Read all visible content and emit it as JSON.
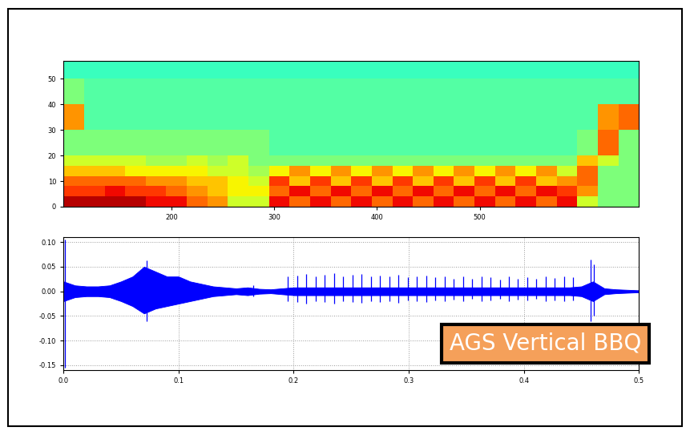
{
  "chart_data": [
    {
      "type": "heatmap",
      "x_edges": [
        95,
        115,
        135,
        155,
        175,
        195,
        215,
        235,
        255,
        275,
        295,
        315,
        335,
        355,
        375,
        395,
        415,
        435,
        455,
        475,
        495,
        515,
        535,
        555,
        575,
        595,
        615,
        635,
        655
      ],
      "y_edges": [
        0,
        4,
        8,
        12,
        16,
        20,
        30,
        40,
        50,
        57
      ],
      "cells": [
        [
          0.95,
          0.95,
          0.95,
          0.95,
          0.9,
          0.9,
          0.8,
          0.75,
          0.6,
          0.6,
          0.9,
          0.8,
          0.9,
          0.8,
          0.9,
          0.8,
          0.9,
          0.8,
          0.9,
          0.8,
          0.9,
          0.8,
          0.9,
          0.8,
          0.9,
          0.6,
          0.5,
          0.5
        ],
        [
          0.85,
          0.85,
          0.9,
          0.85,
          0.85,
          0.8,
          0.75,
          0.7,
          0.65,
          0.65,
          0.8,
          0.9,
          0.8,
          0.9,
          0.8,
          0.9,
          0.8,
          0.9,
          0.8,
          0.9,
          0.8,
          0.9,
          0.8,
          0.9,
          0.85,
          0.75,
          0.5,
          0.5
        ],
        [
          0.8,
          0.8,
          0.8,
          0.8,
          0.75,
          0.75,
          0.7,
          0.7,
          0.65,
          0.6,
          0.85,
          0.7,
          0.85,
          0.7,
          0.85,
          0.7,
          0.85,
          0.7,
          0.85,
          0.7,
          0.85,
          0.7,
          0.85,
          0.7,
          0.75,
          0.8,
          0.5,
          0.5
        ],
        [
          0.7,
          0.7,
          0.7,
          0.65,
          0.65,
          0.65,
          0.65,
          0.6,
          0.6,
          0.55,
          0.65,
          0.75,
          0.65,
          0.75,
          0.65,
          0.75,
          0.65,
          0.75,
          0.65,
          0.75,
          0.65,
          0.75,
          0.65,
          0.75,
          0.6,
          0.8,
          0.5,
          0.5
        ],
        [
          0.6,
          0.6,
          0.6,
          0.6,
          0.55,
          0.55,
          0.6,
          0.55,
          0.6,
          0.5,
          0.5,
          0.5,
          0.5,
          0.5,
          0.5,
          0.5,
          0.5,
          0.5,
          0.5,
          0.5,
          0.5,
          0.5,
          0.5,
          0.5,
          0.5,
          0.7,
          0.6,
          0.5
        ],
        [
          0.5,
          0.5,
          0.5,
          0.5,
          0.5,
          0.5,
          0.5,
          0.5,
          0.5,
          0.5,
          0.45,
          0.45,
          0.45,
          0.45,
          0.45,
          0.45,
          0.45,
          0.45,
          0.45,
          0.45,
          0.45,
          0.45,
          0.45,
          0.45,
          0.45,
          0.5,
          0.8,
          0.5
        ],
        [
          0.75,
          0.45,
          0.45,
          0.45,
          0.45,
          0.45,
          0.45,
          0.45,
          0.45,
          0.45,
          0.45,
          0.45,
          0.45,
          0.45,
          0.45,
          0.45,
          0.45,
          0.45,
          0.45,
          0.45,
          0.45,
          0.45,
          0.45,
          0.45,
          0.45,
          0.45,
          0.75,
          0.8
        ],
        [
          0.5,
          0.45,
          0.45,
          0.45,
          0.45,
          0.45,
          0.45,
          0.45,
          0.45,
          0.45,
          0.45,
          0.45,
          0.45,
          0.45,
          0.45,
          0.45,
          0.45,
          0.45,
          0.45,
          0.45,
          0.45,
          0.45,
          0.45,
          0.45,
          0.45,
          0.45,
          0.45,
          0.45
        ],
        [
          0.42,
          0.42,
          0.42,
          0.42,
          0.42,
          0.42,
          0.42,
          0.42,
          0.42,
          0.42,
          0.42,
          0.42,
          0.42,
          0.42,
          0.42,
          0.42,
          0.42,
          0.42,
          0.42,
          0.42,
          0.42,
          0.42,
          0.42,
          0.42,
          0.42,
          0.42,
          0.42,
          0.42
        ]
      ],
      "value_range": [
        0,
        1
      ],
      "xlim": [
        95,
        655
      ],
      "ylim": [
        0,
        57
      ],
      "xticks": [
        200,
        300,
        400,
        500
      ],
      "yticks": [
        0,
        10,
        20,
        30,
        40,
        50
      ],
      "grid": false
    },
    {
      "type": "area",
      "color": "#0000ff",
      "x": [
        0.0,
        0.01,
        0.02,
        0.03,
        0.04,
        0.05,
        0.06,
        0.07,
        0.08,
        0.09,
        0.1,
        0.11,
        0.12,
        0.13,
        0.14,
        0.15,
        0.16,
        0.17,
        0.18,
        0.19,
        0.2,
        0.21,
        0.22,
        0.23,
        0.24,
        0.25,
        0.26,
        0.27,
        0.28,
        0.29,
        0.3,
        0.31,
        0.32,
        0.33,
        0.34,
        0.35,
        0.36,
        0.37,
        0.38,
        0.39,
        0.4,
        0.41,
        0.42,
        0.43,
        0.44,
        0.45,
        0.46,
        0.47,
        0.48,
        0.49,
        0.5
      ],
      "upper": [
        0.02,
        0.012,
        0.01,
        0.01,
        0.012,
        0.02,
        0.03,
        0.05,
        0.04,
        0.03,
        0.03,
        0.02,
        0.015,
        0.01,
        0.008,
        0.006,
        0.008,
        0.005,
        0.004,
        0.006,
        0.008,
        0.008,
        0.008,
        0.008,
        0.008,
        0.008,
        0.008,
        0.008,
        0.008,
        0.008,
        0.008,
        0.008,
        0.008,
        0.008,
        0.008,
        0.008,
        0.008,
        0.008,
        0.008,
        0.008,
        0.008,
        0.008,
        0.008,
        0.008,
        0.008,
        0.01,
        0.02,
        0.006,
        0.004,
        0.003,
        0.002
      ],
      "lower": [
        -0.02,
        -0.012,
        -0.01,
        -0.01,
        -0.012,
        -0.02,
        -0.03,
        -0.045,
        -0.035,
        -0.03,
        -0.025,
        -0.02,
        -0.015,
        -0.01,
        -0.008,
        -0.006,
        -0.008,
        -0.005,
        -0.004,
        -0.006,
        -0.008,
        -0.008,
        -0.008,
        -0.008,
        -0.008,
        -0.008,
        -0.008,
        -0.008,
        -0.008,
        -0.008,
        -0.008,
        -0.008,
        -0.008,
        -0.008,
        -0.008,
        -0.008,
        -0.008,
        -0.008,
        -0.008,
        -0.008,
        -0.008,
        -0.008,
        -0.008,
        -0.008,
        -0.008,
        -0.01,
        -0.02,
        -0.006,
        -0.004,
        -0.003,
        -0.002
      ],
      "spikes": {
        "x": [
          0.001,
          0.072,
          0.165,
          0.195,
          0.203,
          0.211,
          0.219,
          0.227,
          0.235,
          0.243,
          0.251,
          0.259,
          0.267,
          0.275,
          0.283,
          0.291,
          0.299,
          0.307,
          0.315,
          0.323,
          0.331,
          0.339,
          0.347,
          0.355,
          0.363,
          0.371,
          0.379,
          0.387,
          0.395,
          0.403,
          0.411,
          0.419,
          0.427,
          0.435,
          0.443,
          0.458,
          0.461
        ],
        "upper": [
          0.105,
          0.062,
          0.012,
          0.03,
          0.032,
          0.035,
          0.03,
          0.033,
          0.036,
          0.03,
          0.034,
          0.035,
          0.03,
          0.032,
          0.03,
          0.034,
          0.028,
          0.03,
          0.032,
          0.028,
          0.03,
          0.026,
          0.03,
          0.025,
          0.03,
          0.028,
          0.024,
          0.03,
          0.026,
          0.028,
          0.025,
          0.03,
          0.027,
          0.03,
          0.028,
          0.065,
          0.055
        ],
        "lower": [
          -0.155,
          -0.06,
          -0.01,
          -0.02,
          -0.022,
          -0.025,
          -0.02,
          -0.022,
          -0.025,
          -0.02,
          -0.022,
          -0.024,
          -0.02,
          -0.022,
          -0.02,
          -0.023,
          -0.018,
          -0.02,
          -0.022,
          -0.018,
          -0.02,
          -0.017,
          -0.02,
          -0.016,
          -0.02,
          -0.018,
          -0.016,
          -0.02,
          -0.017,
          -0.018,
          -0.016,
          -0.02,
          -0.018,
          -0.02,
          -0.018,
          -0.06,
          -0.05
        ]
      },
      "xlim": [
        0,
        0.5
      ],
      "ylim": [
        -0.16,
        0.11
      ],
      "xticks": [
        0.0,
        0.1,
        0.2,
        0.3,
        0.4,
        0.5
      ],
      "yticks": [
        {
          "value": -0.15,
          "label": "-0.15"
        },
        {
          "value": -0.1,
          "label": "-0.10"
        },
        {
          "value": -0.05,
          "label": "-0.05"
        },
        {
          "value": 0.0,
          "label": "0.00"
        },
        {
          "value": 0.05,
          "label": "0.05"
        },
        {
          "value": 0.1,
          "label": "0.10"
        }
      ],
      "grid": true,
      "annotations": [
        "AGS Vertical BBQ"
      ]
    }
  ]
}
